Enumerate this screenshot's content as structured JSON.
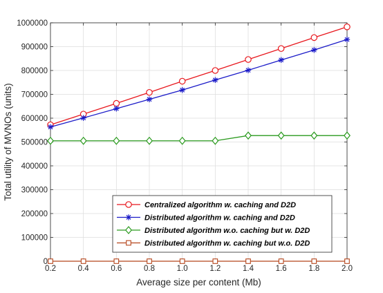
{
  "chart_data": {
    "type": "line",
    "title": "",
    "xlabel": "Average size per content (Mb)",
    "ylabel": "Total utility of MVNOs (units)",
    "xlim": [
      0.2,
      2.0
    ],
    "ylim": [
      0,
      1000000
    ],
    "x": [
      0.2,
      0.4,
      0.6,
      0.8,
      1.0,
      1.2,
      1.4,
      1.6,
      1.8,
      2.0
    ],
    "x_tick_labels": [
      "0.2",
      "0.4",
      "0.6",
      "0.8",
      "1.0",
      "1.2",
      "1.4",
      "1.6",
      "1.8",
      "2.0"
    ],
    "y_tick_values": [
      0,
      100000,
      200000,
      300000,
      400000,
      500000,
      600000,
      700000,
      800000,
      900000,
      1000000
    ],
    "y_tick_labels": [
      "0",
      "100000",
      "200000",
      "300000",
      "400000",
      "500000",
      "600000",
      "700000",
      "800000",
      "900000",
      "1000000"
    ],
    "grid": true,
    "legend_position": "lower-right",
    "series": [
      {
        "name": "Centralized algorithm w. caching and D2D",
        "color": "#e8161c",
        "marker": "circle",
        "values": [
          572000,
          617000,
          662000,
          708000,
          755000,
          800000,
          846000,
          892000,
          938000,
          983000
        ]
      },
      {
        "name": "Distributed algorithm w. caching and D2D",
        "color": "#1a1ac8",
        "marker": "asterisk",
        "values": [
          563000,
          601000,
          640000,
          679000,
          718000,
          760000,
          801000,
          844000,
          886000,
          930000
        ]
      },
      {
        "name": "Distributed algorithm w.o. caching but w. D2D",
        "color": "#2a9a1e",
        "marker": "diamond",
        "values": [
          505000,
          505000,
          505000,
          505000,
          505000,
          505000,
          527000,
          527000,
          527000,
          527000
        ]
      },
      {
        "name": "Distributed algorithm w. caching but w.o. D2D",
        "color": "#b5451b",
        "marker": "square",
        "values": [
          0,
          0,
          0,
          0,
          0,
          0,
          0,
          0,
          0,
          0
        ]
      }
    ]
  }
}
